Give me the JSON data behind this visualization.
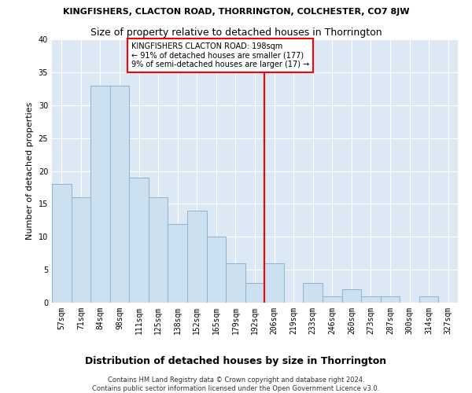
{
  "title": "KINGFISHERS, CLACTON ROAD, THORRINGTON, COLCHESTER, CO7 8JW",
  "subtitle": "Size of property relative to detached houses in Thorrington",
  "xlabel": "Distribution of detached houses by size in Thorrington",
  "ylabel": "Number of detached properties",
  "categories": [
    "57sqm",
    "71sqm",
    "84sqm",
    "98sqm",
    "111sqm",
    "125sqm",
    "138sqm",
    "152sqm",
    "165sqm",
    "179sqm",
    "192sqm",
    "206sqm",
    "219sqm",
    "233sqm",
    "246sqm",
    "260sqm",
    "273sqm",
    "287sqm",
    "300sqm",
    "314sqm",
    "327sqm"
  ],
  "values": [
    18,
    16,
    33,
    33,
    19,
    16,
    12,
    14,
    10,
    6,
    3,
    6,
    0,
    3,
    1,
    2,
    1,
    1,
    0,
    1,
    0
  ],
  "bar_color": "#cce0f0",
  "bar_edge_color": "#8ab4d4",
  "marker_index": 10.5,
  "annotation_text": "KINGFISHERS CLACTON ROAD: 198sqm\n← 91% of detached houses are smaller (177)\n9% of semi-detached houses are larger (17) →",
  "annotation_box_color": "white",
  "annotation_box_edge_color": "red",
  "vline_color": "red",
  "ylim": [
    0,
    40
  ],
  "yticks": [
    0,
    5,
    10,
    15,
    20,
    25,
    30,
    35,
    40
  ],
  "bg_color": "#dde8f5",
  "grid_color": "white",
  "footer_line1": "Contains HM Land Registry data © Crown copyright and database right 2024.",
  "footer_line2": "Contains public sector information licensed under the Open Government Licence v3.0.",
  "title_fontsize": 8,
  "subtitle_fontsize": 9,
  "ylabel_fontsize": 8,
  "xlabel_fontsize": 9,
  "annotation_fontsize": 7,
  "tick_fontsize": 7,
  "footer_fontsize": 6
}
